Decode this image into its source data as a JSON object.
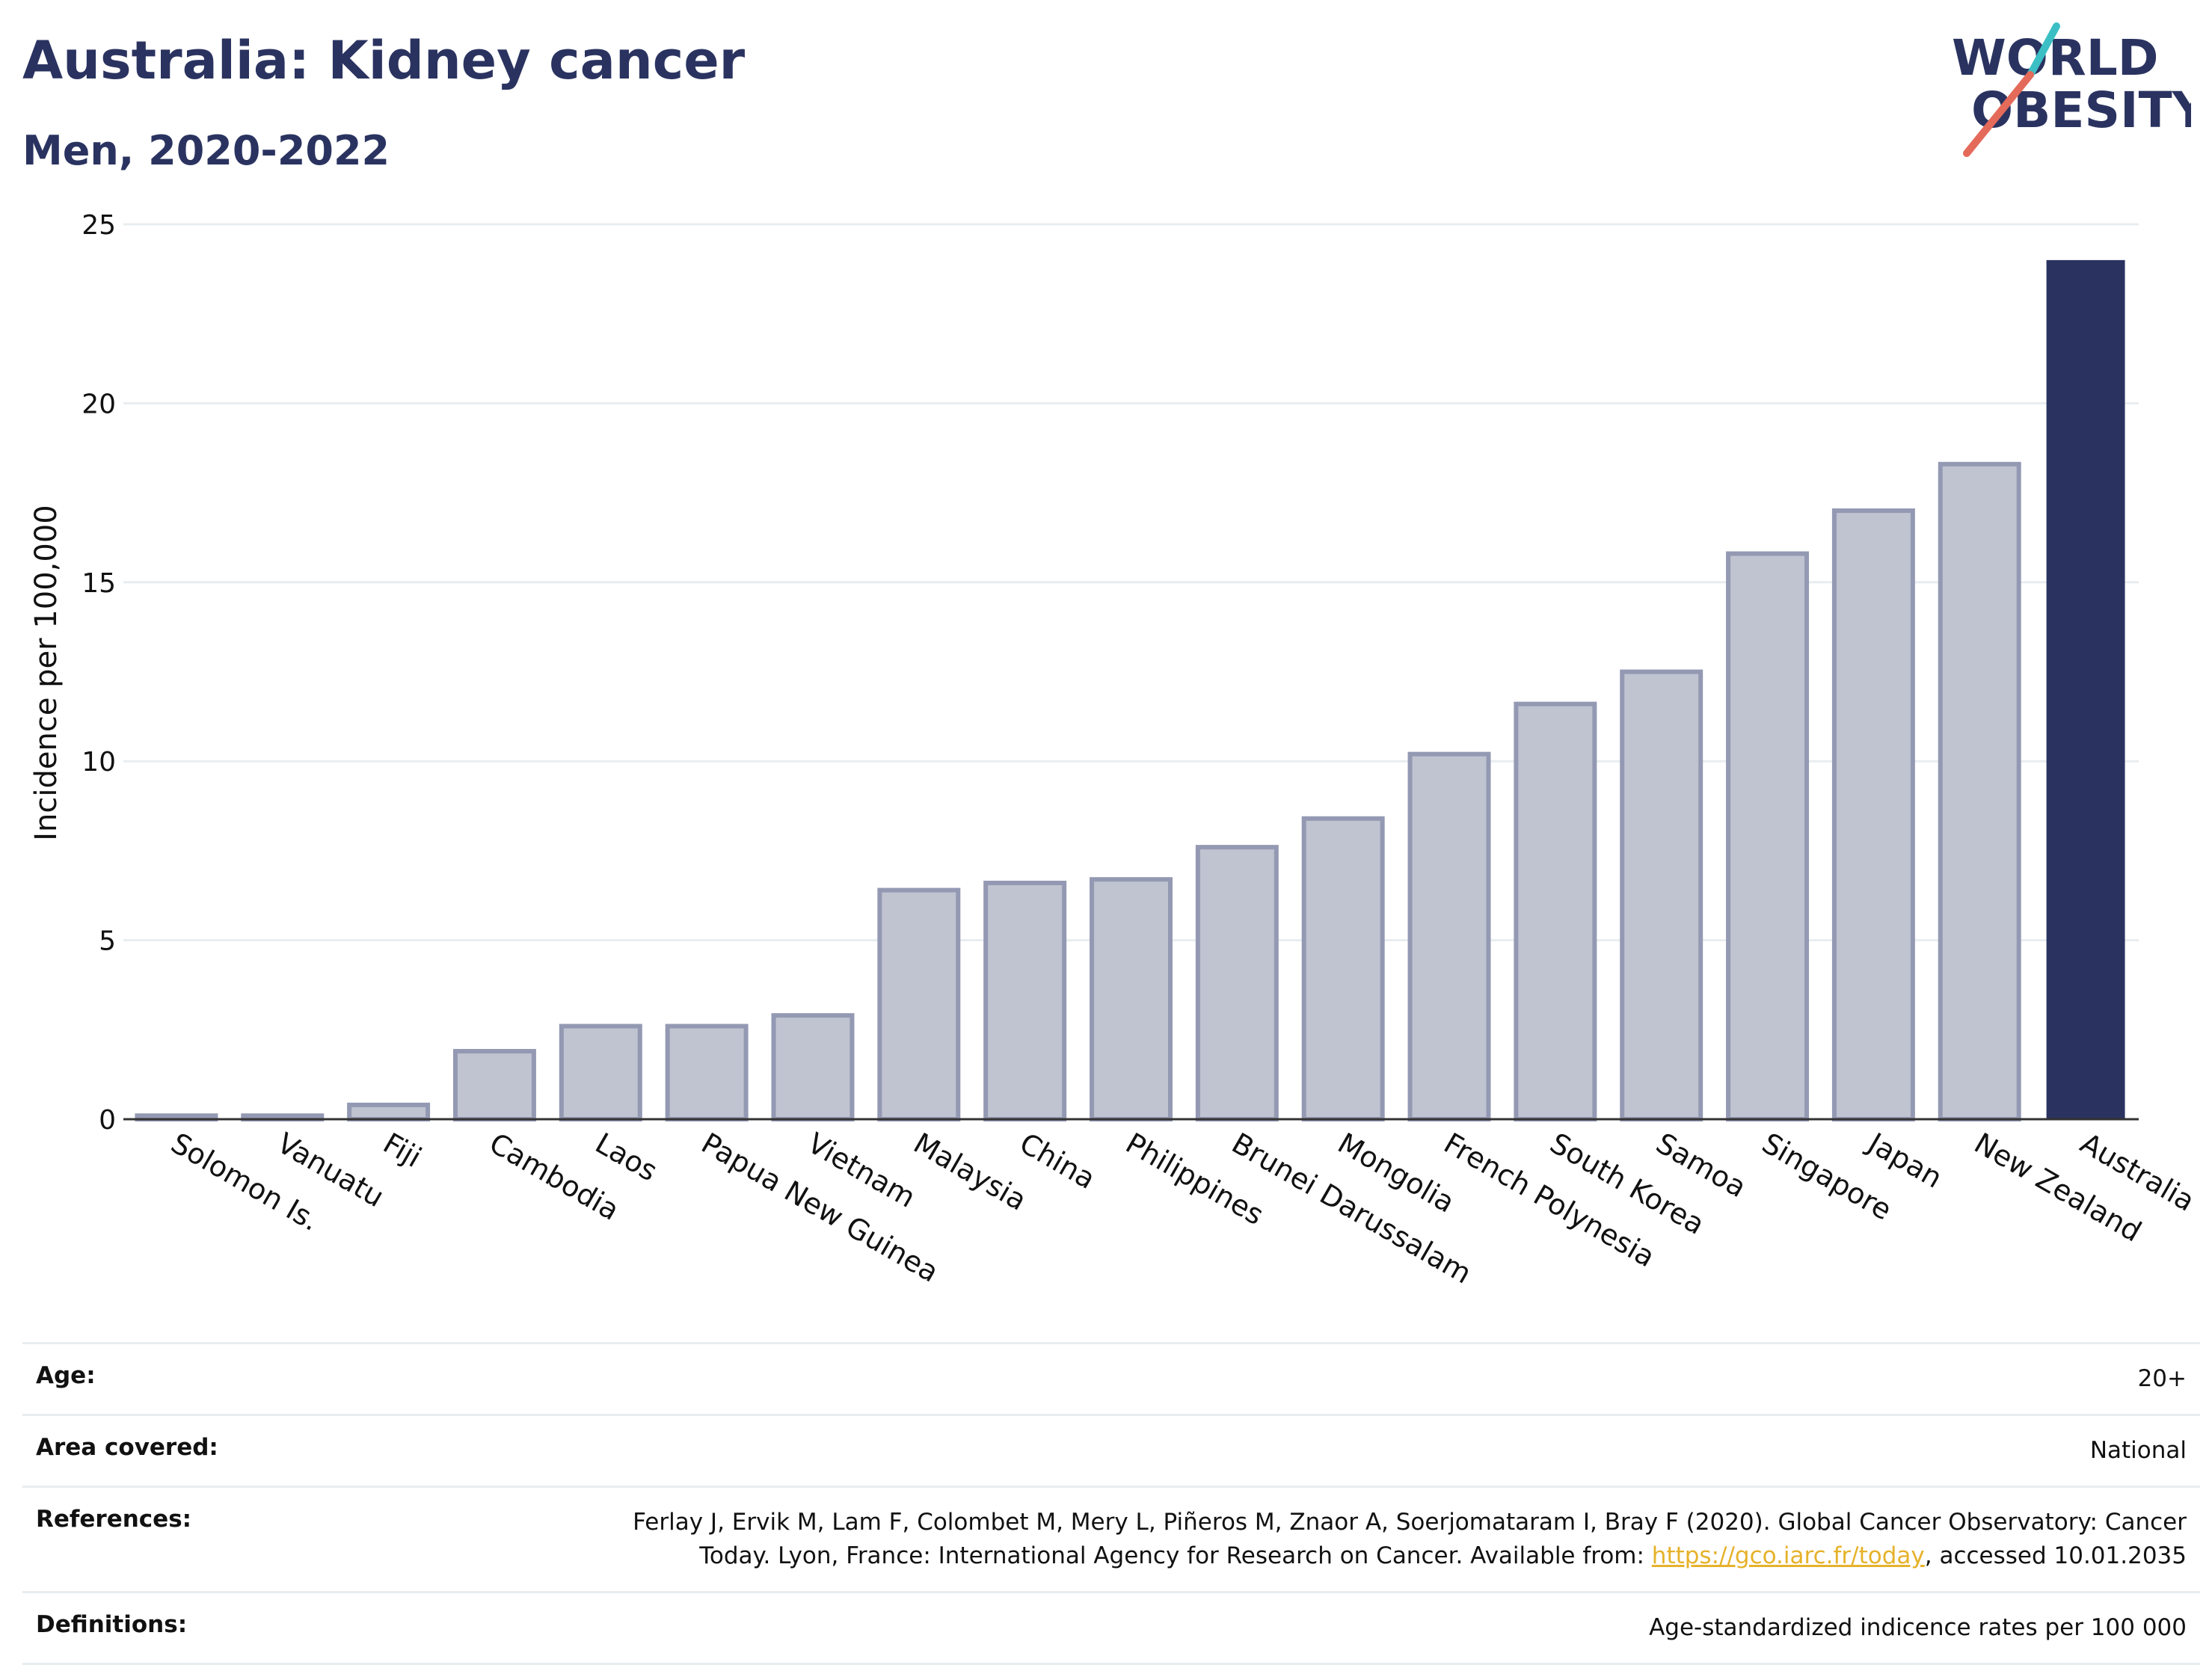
{
  "header": {
    "title": "Australia: Kidney cancer",
    "subtitle": "Men, 2020-2022"
  },
  "logo": {
    "line1": "WORLD",
    "line2": "OBESITY",
    "accent_teal": "#3bbfc4",
    "accent_coral": "#e46a5a"
  },
  "colors": {
    "bar_default": "#c0c3d0",
    "bar_default_stroke": "#9499b3",
    "bar_highlight": "#2a3360",
    "text_dark": "#2a3360",
    "grid": "#e8edf0"
  },
  "chart_data": {
    "type": "bar",
    "title": "",
    "xlabel": "",
    "ylabel": "Incidence per 100,000",
    "ylim": [
      0,
      25
    ],
    "yticks": [
      0,
      5,
      10,
      15,
      20,
      25
    ],
    "grid": true,
    "highlight": "Australia",
    "categories": [
      "Solomon Is.",
      "Vanuatu",
      "Fiji",
      "Cambodia",
      "Laos",
      "Papua New Guinea",
      "Vietnam",
      "Malaysia",
      "China",
      "Philippines",
      "Brunei Darussalam",
      "Mongolia",
      "French Polynesia",
      "South Korea",
      "Samoa",
      "Singapore",
      "Japan",
      "New Zealand",
      "Australia"
    ],
    "values": [
      0.1,
      0.1,
      0.4,
      1.9,
      2.6,
      2.6,
      2.9,
      6.4,
      6.6,
      6.7,
      7.6,
      8.4,
      10.2,
      11.6,
      12.5,
      15.8,
      17.0,
      18.3,
      24.0
    ]
  },
  "meta": {
    "age_label": "Age:",
    "age_value": "20+",
    "area_label": "Area covered:",
    "area_value": "National",
    "references_label": "References:",
    "references_text": "Ferlay J, Ervik M, Lam F, Colombet M, Mery L, Piñeros M, Znaor A, Soerjomataram I, Bray F (2020). Global Cancer Observatory: Cancer Today. Lyon, France: International Agency for Research on Cancer. Available from: ",
    "references_link": "https://gco.iarc.fr/today",
    "references_suffix": ", accessed 10.01.2035",
    "definitions_label": "Definitions:",
    "definitions_value": "Age-standardized indicence rates per 100 000"
  }
}
